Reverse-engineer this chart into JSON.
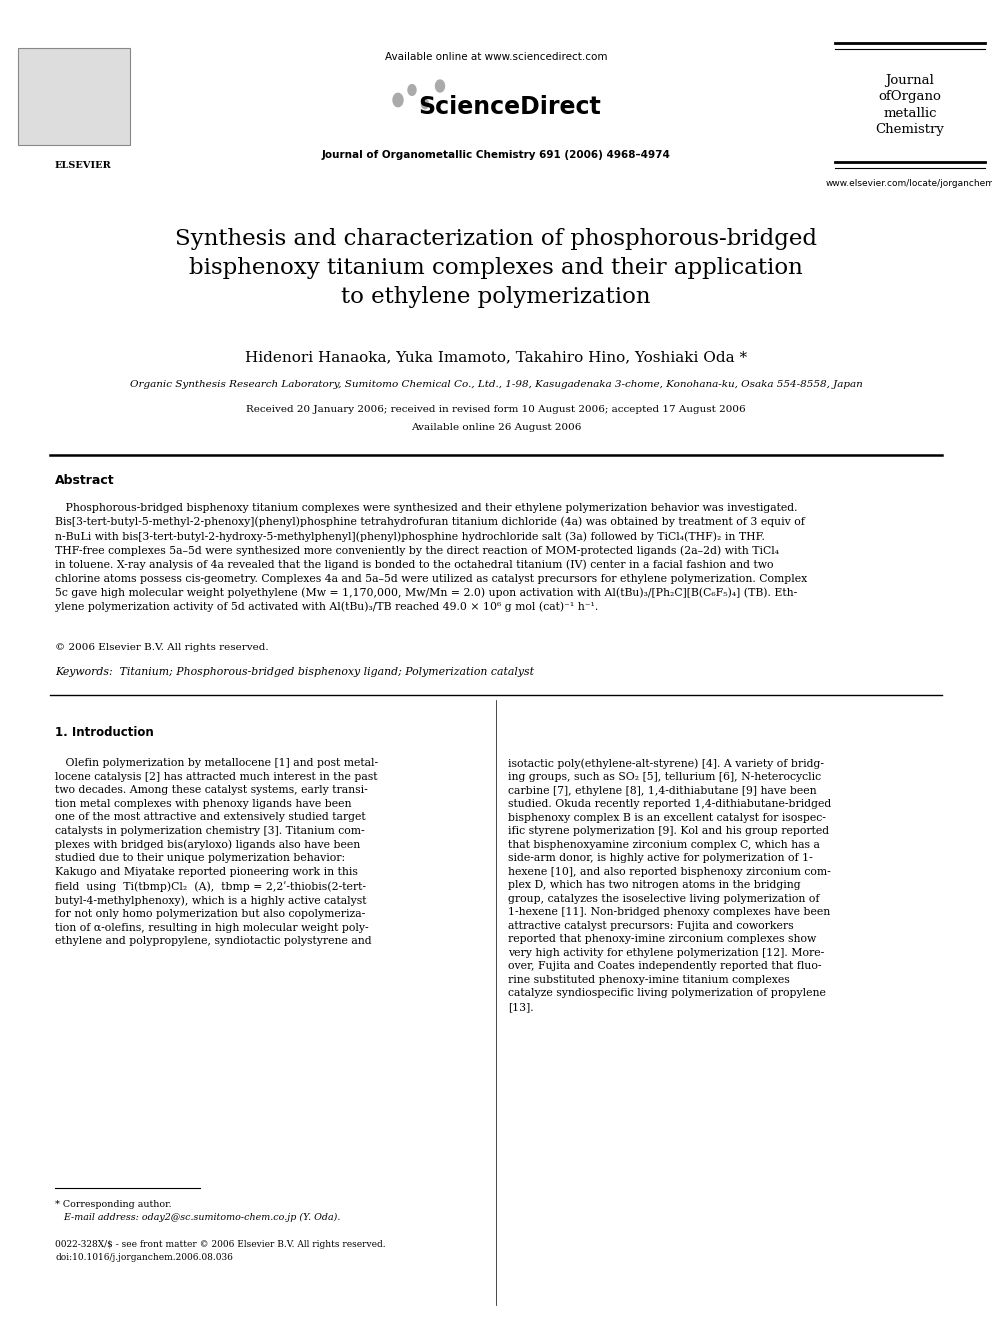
{
  "bg_color": "#ffffff",
  "page_width": 9.92,
  "page_height": 13.23,
  "header": {
    "available_online_text": "Available online at www.sciencedirect.com",
    "journal_info": "Journal of Organometallic Chemistry 691 (2006) 4968–4974",
    "journal_name": "Journal\nofOrgano\nmetallic\nChemistry",
    "website": "www.elsevier.com/locate/jorganchem",
    "elsevier_label": "ELSEVIER"
  },
  "title": "Synthesis and characterization of phosphorous-bridged\nbisphenoxy titanium complexes and their application\nto ethylene polymerization",
  "authors": "Hidenori Hanaoka, Yuka Imamoto, Takahiro Hino, Yoshiaki Oda *",
  "affiliation": "Organic Synthesis Research Laboratory, Sumitomo Chemical Co., Ltd., 1-98, Kasugadenaka 3-chome, Konohana-ku, Osaka 554-8558, Japan",
  "received_text": "Received 20 January 2006; received in revised form 10 August 2006; accepted 17 August 2006",
  "available_text": "Available online 26 August 2006",
  "abstract_heading": "Abstract",
  "copyright_text": "© 2006 Elsevier B.V. All rights reserved.",
  "keywords_text": "Keywords:  Titanium; Phosphorous-bridged bisphenoxy ligand; Polymerization catalyst",
  "section1_heading": "1. Introduction",
  "col1_body": "   Olefin polymerization by metallocene [1] and post metal-\nlocene catalysis [2] has attracted much interest in the past\ntwo decades. Among these catalyst systems, early transi-\ntion metal complexes with phenoxy ligands have been\none of the most attractive and extensively studied target\ncatalysts in polymerization chemistry [3]. Titanium com-\nplexes with bridged bis(aryloxo) ligands also have been\nstudied due to their unique polymerization behavior:\nKakugo and Miyatake reported pioneering work in this\nfield  using  Ti(tbmp)Cl₂  (A),  tbmp = 2,2ʹ-thiobis(2-tert-\nbutyl-4-methylphenoxy), which is a highly active catalyst\nfor not only homo polymerization but also copolymeriza-\ntion of α-olefins, resulting in high molecular weight poly-\nethylene and polypropylene, syndiotactic polystyrene and",
  "col2_body": "isotactic poly(ethylene-alt-styrene) [4]. A variety of bridg-\ning groups, such as SO₂ [5], tellurium [6], N-heterocyclic\ncarbine [7], ethylene [8], 1,4-dithiabutane [9] have been\nstudied. Okuda recently reported 1,4-dithiabutane-bridged\nbisphenoxy complex B is an excellent catalyst for isospec-\nific styrene polymerization [9]. Kol and his group reported\nthat bisphenoxyamine zirconium complex C, which has a\nside-arm donor, is highly active for polymerization of 1-\nhexene [10], and also reported bisphenoxy zirconium com-\nplex D, which has two nitrogen atoms in the bridging\ngroup, catalyzes the isoselective living polymerization of\n1-hexene [11]. Non-bridged phenoxy complexes have been\nattractive catalyst precursors: Fujita and coworkers\nreported that phenoxy-imine zirconium complexes show\nvery high activity for ethylene polymerization [12]. More-\nover, Fujita and Coates independently reported that fluo-\nrine substituted phenoxy-imine titanium complexes\ncatalyze syndiospecific living polymerization of propylene\n[13].",
  "footnote_star": "* Corresponding author.",
  "footnote_email": "   E-mail address: oday2@sc.sumitomo-chem.co.jp (Y. Oda).",
  "footnote_issn": "0022-328X/$ - see front matter © 2006 Elsevier B.V. All rights reserved.",
  "footnote_doi": "doi:10.1016/j.jorganchem.2006.08.036",
  "text_color": "#000000",
  "link_color": "#0000cc",
  "abstract_body": "   Phosphorous-bridged bisphenoxy titanium complexes were synthesized and their ethylene polymerization behavior was investigated.\nBis[3-tert-butyl-5-methyl-2-phenoxy](phenyl)phosphine tetrahydrofuran titanium dichloride (4a) was obtained by treatment of 3 equiv of\nn-BuLi with bis[3-tert-butyl-2-hydroxy-5-methylphenyl](phenyl)phosphine hydrochloride salt (3a) followed by TiCl₄(THF)₂ in THF.\nTHF-free complexes 5a–5d were synthesized more conveniently by the direct reaction of MOM-protected ligands (2a–2d) with TiCl₄\nin toluene. X-ray analysis of 4a revealed that the ligand is bonded to the octahedral titanium (IV) center in a facial fashion and two\nchlorine atoms possess cis-geometry. Complexes 4a and 5a–5d were utilized as catalyst precursors for ethylene polymerization. Complex\n5c gave high molecular weight polyethylene (Mw = 1,170,000, Mw/Mn = 2.0) upon activation with Al(tBu)₃/[Ph₂C][B(C₆F₅)₄] (TB). Eth-\nylene polymerization activity of 5d activated with Al(tBu)₃/TB reached 49.0 × 10⁶ g mol (cat)⁻¹ h⁻¹."
}
